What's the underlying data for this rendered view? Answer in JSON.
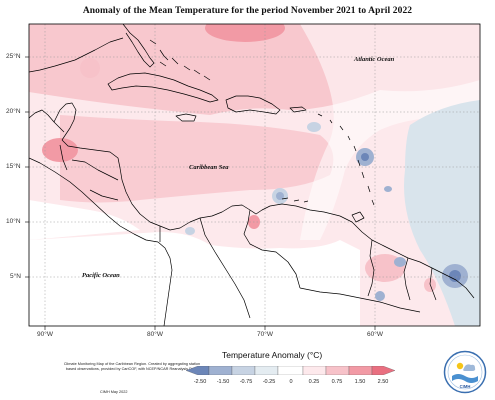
{
  "title": "Anomaly of the Mean Temperature for the period November 2021 to April 2022",
  "map": {
    "lat_labels": [
      "25°N",
      "20°N",
      "15°N",
      "10°N",
      "5°N"
    ],
    "lon_labels": [
      "90°W",
      "80°W",
      "70°W",
      "60°W"
    ],
    "ocean_labels": {
      "atlantic": "Atlantic Ocean",
      "caribbean": "Caribbean Sea",
      "pacific": "Pacific Ocean"
    }
  },
  "legend": {
    "title": "Temperature Anomaly (°C)",
    "ticks": [
      "-2.50",
      "-1.50",
      "-0.75",
      "-0.25",
      "0",
      "0.25",
      "0.75",
      "1.50",
      "2.50"
    ],
    "colors": [
      "#6c86b8",
      "#9fb1d1",
      "#c7d3e3",
      "#e4ecf1",
      "#ffffff",
      "#fde9ec",
      "#f7c2c9",
      "#f29aa5",
      "#e96f80"
    ]
  },
  "credit": {
    "text": "Climate Monitoring Map of the Caribbean Region. Created by aggregating station based observations, provided by CariCOF, with NCEP/NCAR Reanalysis Data.",
    "date": "CIMH May 2022"
  },
  "logo": {
    "text": "CIMH"
  }
}
